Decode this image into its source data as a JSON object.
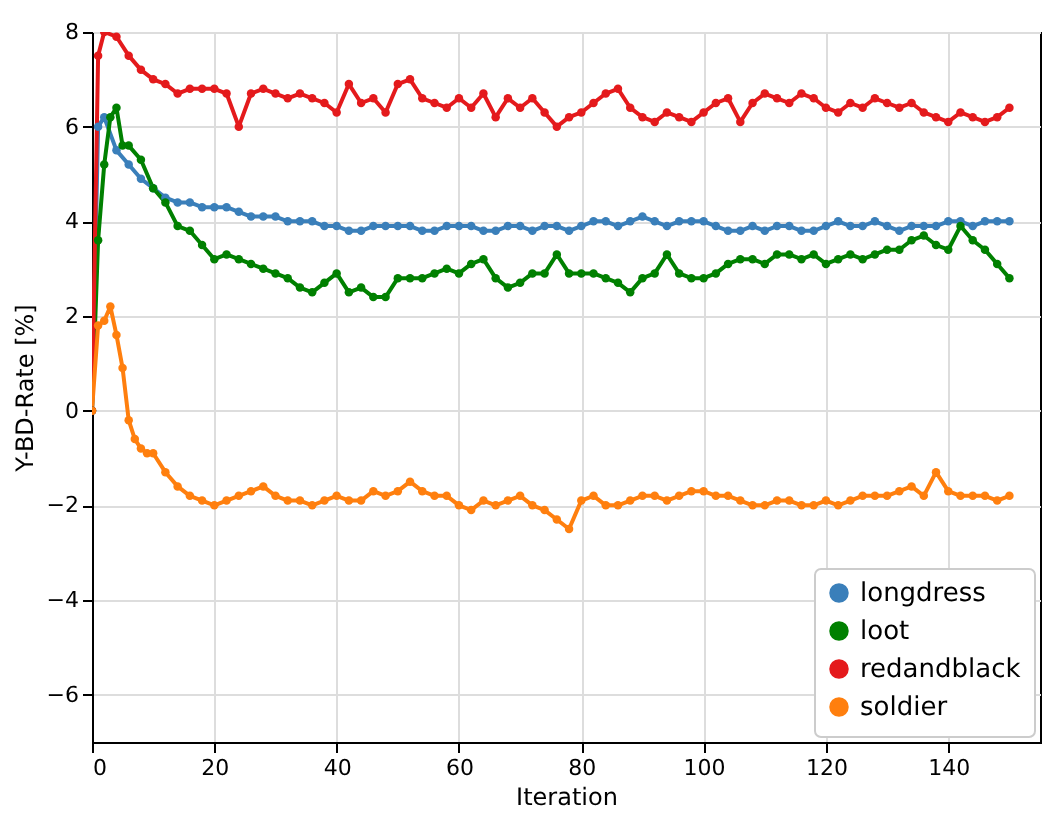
{
  "chart_data": {
    "type": "line",
    "xlabel": "Iteration",
    "ylabel": "Y-BD-Rate [%]",
    "xlim": [
      0,
      155
    ],
    "xticks": [
      0,
      20,
      40,
      60,
      80,
      100,
      120,
      140
    ],
    "ylim": [
      -7,
      8
    ],
    "yticks": [
      -6,
      -4,
      -2,
      0,
      2,
      4,
      6,
      8
    ],
    "grid": true,
    "legend": "bottom right",
    "marker": "circle",
    "line_style": "solid",
    "series": [
      {
        "name": "longdress",
        "color": "#3a7fba",
        "x": [
          0,
          1,
          2,
          4,
          6,
          8,
          10,
          12,
          14,
          16,
          18,
          20,
          22,
          24,
          26,
          28,
          30,
          32,
          34,
          36,
          38,
          40,
          42,
          44,
          46,
          48,
          50,
          52,
          54,
          56,
          58,
          60,
          62,
          64,
          66,
          68,
          70,
          72,
          74,
          76,
          78,
          80,
          82,
          84,
          86,
          88,
          90,
          92,
          94,
          96,
          98,
          100,
          102,
          104,
          106,
          108,
          110,
          112,
          114,
          116,
          118,
          120,
          122,
          124,
          126,
          128,
          130,
          132,
          134,
          136,
          138,
          140,
          142,
          144,
          146,
          148,
          150
        ],
        "values": [
          0,
          6.0,
          6.2,
          5.5,
          5.2,
          4.9,
          4.7,
          4.5,
          4.4,
          4.4,
          4.3,
          4.3,
          4.3,
          4.2,
          4.1,
          4.1,
          4.1,
          4.0,
          4.0,
          4.0,
          3.9,
          3.9,
          3.8,
          3.8,
          3.9,
          3.9,
          3.9,
          3.9,
          3.8,
          3.8,
          3.9,
          3.9,
          3.9,
          3.8,
          3.8,
          3.9,
          3.9,
          3.8,
          3.9,
          3.9,
          3.8,
          3.9,
          4.0,
          4.0,
          3.9,
          4.0,
          4.1,
          4.0,
          3.9,
          4.0,
          4.0,
          4.0,
          3.9,
          3.8,
          3.8,
          3.9,
          3.8,
          3.9,
          3.9,
          3.8,
          3.8,
          3.9,
          4.0,
          3.9,
          3.9,
          4.0,
          3.9,
          3.8,
          3.9,
          3.9,
          3.9,
          4.0,
          4.0,
          3.9,
          4.0,
          4.0,
          4.0
        ]
      },
      {
        "name": "loot",
        "color": "#008000",
        "x": [
          0,
          1,
          2,
          3,
          4,
          5,
          6,
          8,
          10,
          12,
          14,
          16,
          18,
          20,
          22,
          24,
          26,
          28,
          30,
          32,
          34,
          36,
          38,
          40,
          42,
          44,
          46,
          48,
          50,
          52,
          54,
          56,
          58,
          60,
          62,
          64,
          66,
          68,
          70,
          72,
          74,
          76,
          78,
          80,
          82,
          84,
          86,
          88,
          90,
          92,
          94,
          96,
          98,
          100,
          102,
          104,
          106,
          108,
          110,
          112,
          114,
          116,
          118,
          120,
          122,
          124,
          126,
          128,
          130,
          132,
          134,
          136,
          138,
          140,
          142,
          144,
          146,
          148,
          150
        ],
        "values": [
          0,
          3.6,
          5.2,
          6.2,
          6.4,
          5.6,
          5.6,
          5.3,
          4.7,
          4.4,
          3.9,
          3.8,
          3.5,
          3.2,
          3.3,
          3.2,
          3.1,
          3.0,
          2.9,
          2.8,
          2.6,
          2.5,
          2.7,
          2.9,
          2.5,
          2.6,
          2.4,
          2.4,
          2.8,
          2.8,
          2.8,
          2.9,
          3.0,
          2.9,
          3.1,
          3.2,
          2.8,
          2.6,
          2.7,
          2.9,
          2.9,
          3.3,
          2.9,
          2.9,
          2.9,
          2.8,
          2.7,
          2.5,
          2.8,
          2.9,
          3.3,
          2.9,
          2.8,
          2.8,
          2.9,
          3.1,
          3.2,
          3.2,
          3.1,
          3.3,
          3.3,
          3.2,
          3.3,
          3.1,
          3.2,
          3.3,
          3.2,
          3.3,
          3.4,
          3.4,
          3.6,
          3.7,
          3.5,
          3.4,
          3.9,
          3.6,
          3.4,
          3.1,
          2.8
        ]
      },
      {
        "name": "redandblack",
        "color": "#e41a1c",
        "x": [
          0,
          1,
          2,
          4,
          6,
          8,
          10,
          12,
          14,
          16,
          18,
          20,
          22,
          24,
          26,
          28,
          30,
          32,
          34,
          36,
          38,
          40,
          42,
          44,
          46,
          48,
          50,
          52,
          54,
          56,
          58,
          60,
          62,
          64,
          66,
          68,
          70,
          72,
          74,
          76,
          78,
          80,
          82,
          84,
          86,
          88,
          90,
          92,
          94,
          96,
          98,
          100,
          102,
          104,
          106,
          108,
          110,
          112,
          114,
          116,
          118,
          120,
          122,
          124,
          126,
          128,
          130,
          132,
          134,
          136,
          138,
          140,
          142,
          144,
          146,
          148,
          150
        ],
        "values": [
          0,
          7.5,
          8,
          7.9,
          7.5,
          7.2,
          7.0,
          6.9,
          6.7,
          6.8,
          6.8,
          6.8,
          6.7,
          6.0,
          6.7,
          6.8,
          6.7,
          6.6,
          6.7,
          6.6,
          6.5,
          6.3,
          6.9,
          6.5,
          6.6,
          6.3,
          6.9,
          7.0,
          6.6,
          6.5,
          6.4,
          6.6,
          6.4,
          6.7,
          6.2,
          6.6,
          6.4,
          6.6,
          6.3,
          6.0,
          6.2,
          6.3,
          6.5,
          6.7,
          6.8,
          6.4,
          6.2,
          6.1,
          6.3,
          6.2,
          6.1,
          6.3,
          6.5,
          6.6,
          6.1,
          6.5,
          6.7,
          6.6,
          6.5,
          6.7,
          6.6,
          6.4,
          6.3,
          6.5,
          6.4,
          6.6,
          6.5,
          6.4,
          6.5,
          6.3,
          6.2,
          6.1,
          6.3,
          6.2,
          6.1,
          6.2,
          6.4
        ]
      },
      {
        "name": "soldier",
        "color": "#ff7f0e",
        "x": [
          0,
          1,
          2,
          3,
          4,
          5,
          6,
          7,
          8,
          9,
          10,
          12,
          14,
          16,
          18,
          20,
          22,
          24,
          26,
          28,
          30,
          32,
          34,
          36,
          38,
          40,
          42,
          44,
          46,
          48,
          50,
          52,
          54,
          56,
          58,
          60,
          62,
          64,
          66,
          68,
          70,
          72,
          74,
          76,
          78,
          80,
          82,
          84,
          86,
          88,
          90,
          92,
          94,
          96,
          98,
          100,
          102,
          104,
          106,
          108,
          110,
          112,
          114,
          116,
          118,
          120,
          122,
          124,
          126,
          128,
          130,
          132,
          134,
          136,
          138,
          140,
          142,
          144,
          146,
          148,
          150
        ],
        "values": [
          0,
          1.8,
          1.9,
          2.2,
          1.6,
          0.9,
          -0.2,
          -0.6,
          -0.8,
          -0.9,
          -0.9,
          -1.3,
          -1.6,
          -1.8,
          -1.9,
          -2.0,
          -1.9,
          -1.8,
          -1.7,
          -1.6,
          -1.8,
          -1.9,
          -1.9,
          -2.0,
          -1.9,
          -1.8,
          -1.9,
          -1.9,
          -1.7,
          -1.8,
          -1.7,
          -1.5,
          -1.7,
          -1.8,
          -1.8,
          -2.0,
          -2.1,
          -1.9,
          -2.0,
          -1.9,
          -1.8,
          -2.0,
          -2.1,
          -2.3,
          -2.5,
          -1.9,
          -1.8,
          -2.0,
          -2.0,
          -1.9,
          -1.8,
          -1.8,
          -1.9,
          -1.8,
          -1.7,
          -1.7,
          -1.8,
          -1.8,
          -1.9,
          -2.0,
          -2.0,
          -1.9,
          -1.9,
          -2.0,
          -2.0,
          -1.9,
          -2.0,
          -1.9,
          -1.8,
          -1.8,
          -1.8,
          -1.7,
          -1.6,
          -1.8,
          -1.3,
          -1.7,
          -1.8,
          -1.8,
          -1.8,
          -1.9,
          -1.8
        ]
      }
    ]
  }
}
